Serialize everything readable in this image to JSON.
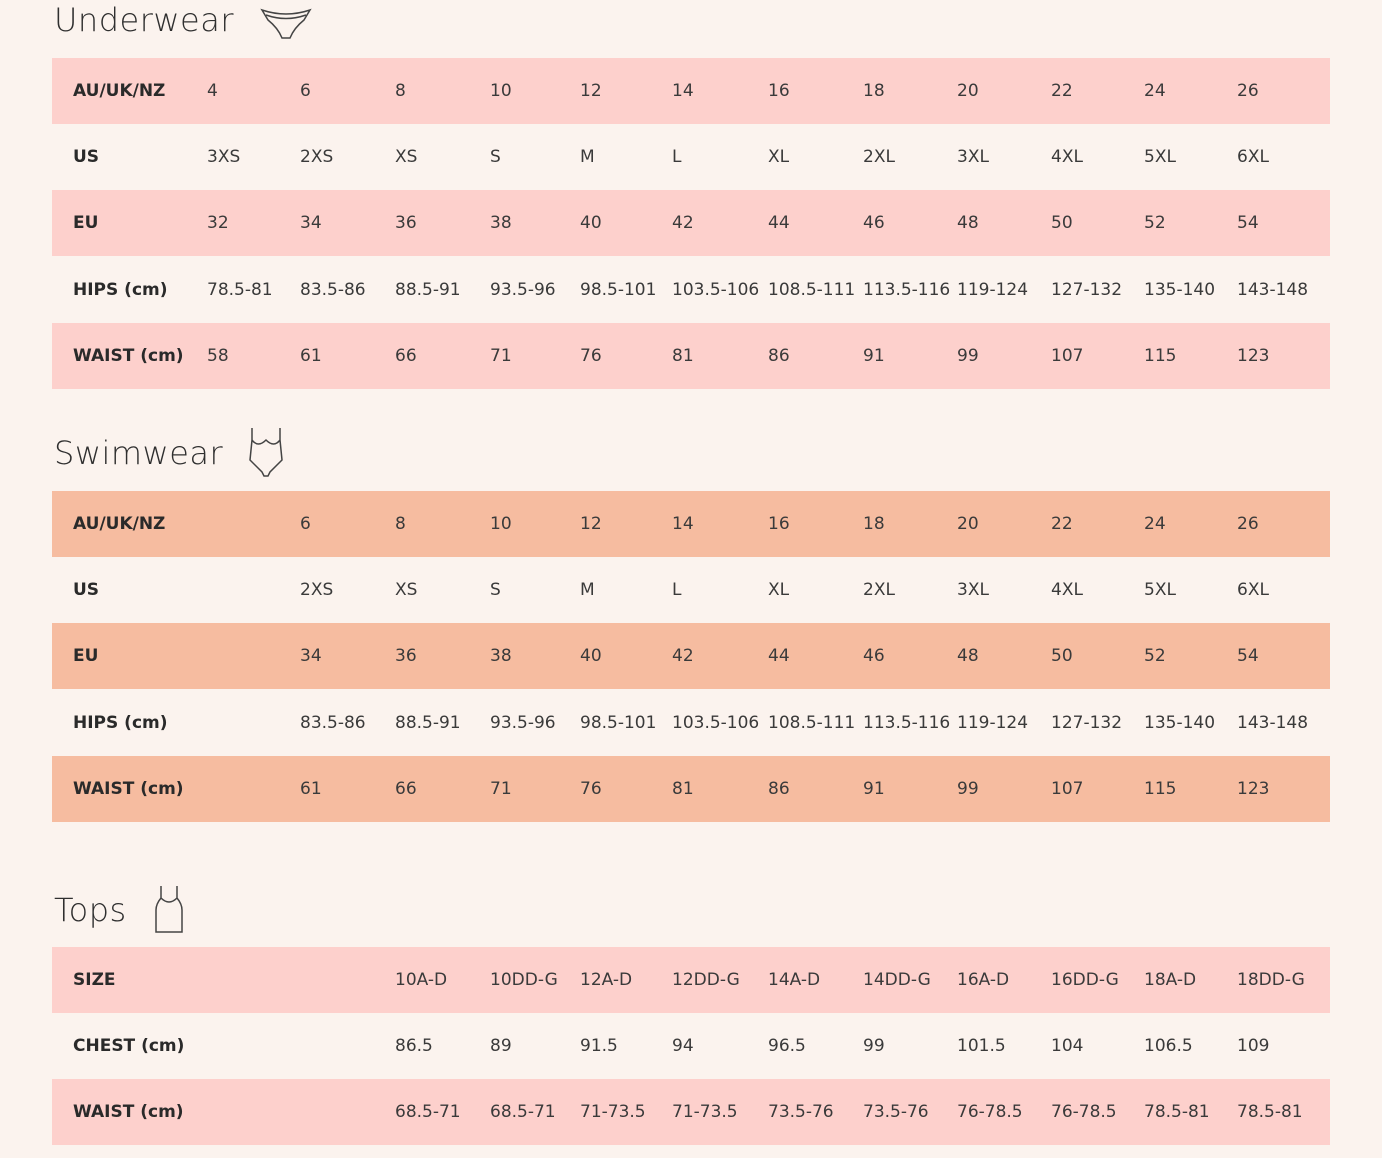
{
  "sections": [
    {
      "title": "Underwear",
      "rows": [
        {
          "label": "AU/UK/NZ",
          "values": [
            "4",
            "6",
            "8",
            "10",
            "12",
            "14",
            "16",
            "18",
            "20",
            "22",
            "24",
            "26"
          ]
        },
        {
          "label": "US",
          "values": [
            "3XS",
            "2XS",
            "XS",
            "S",
            "M",
            "L",
            "XL",
            "2XL",
            "3XL",
            "4XL",
            "5XL",
            "6XL"
          ]
        },
        {
          "label": "EU",
          "values": [
            "32",
            "34",
            "36",
            "38",
            "40",
            "42",
            "44",
            "46",
            "48",
            "50",
            "52",
            "54"
          ]
        },
        {
          "label": "HIPS (cm)",
          "values": [
            "78.5-81",
            "83.5-86",
            "88.5-91",
            "93.5-96",
            "98.5-101",
            "103.5-106",
            "108.5-111",
            "113.5-116",
            "119-124",
            "127-132",
            "135-140",
            "143-148"
          ]
        },
        {
          "label": "WAIST (cm)",
          "values": [
            "58",
            "61",
            "66",
            "71",
            "76",
            "81",
            "86",
            "91",
            "99",
            "107",
            "115",
            "123"
          ]
        }
      ]
    },
    {
      "title": "Swimwear",
      "rows": [
        {
          "label": "AU/UK/NZ",
          "values": [
            "6",
            "8",
            "10",
            "12",
            "14",
            "16",
            "18",
            "20",
            "22",
            "24",
            "26"
          ]
        },
        {
          "label": "US",
          "values": [
            "2XS",
            "XS",
            "S",
            "M",
            "L",
            "XL",
            "2XL",
            "3XL",
            "4XL",
            "5XL",
            "6XL"
          ]
        },
        {
          "label": "EU",
          "values": [
            "34",
            "36",
            "38",
            "40",
            "42",
            "44",
            "46",
            "48",
            "50",
            "52",
            "54"
          ]
        },
        {
          "label": "HIPS (cm)",
          "values": [
            "83.5-86",
            "88.5-91",
            "93.5-96",
            "98.5-101",
            "103.5-106",
            "108.5-111",
            "113.5-116",
            "119-124",
            "127-132",
            "135-140",
            "143-148"
          ]
        },
        {
          "label": "WAIST (cm)",
          "values": [
            "61",
            "66",
            "71",
            "76",
            "81",
            "86",
            "91",
            "99",
            "107",
            "115",
            "123"
          ]
        }
      ]
    },
    {
      "title": "Tops",
      "rows": [
        {
          "label": "SIZE",
          "values": [
            "10A-D",
            "10DD-G",
            "12A-D",
            "12DD-G",
            "14A-D",
            "14DD-G",
            "16A-D",
            "16DD-G",
            "18A-D",
            "18DD-G"
          ]
        },
        {
          "label": "CHEST (cm)",
          "values": [
            "86.5",
            "89",
            "91.5",
            "94",
            "96.5",
            "99",
            "101.5",
            "104",
            "106.5",
            "109"
          ]
        },
        {
          "label": "WAIST (cm)",
          "values": [
            "68.5-71",
            "68.5-71",
            "71-73.5",
            "71-73.5",
            "73.5-76",
            "73.5-76",
            "76-78.5",
            "76-78.5",
            "78.5-81",
            "78.5-81"
          ]
        }
      ]
    }
  ]
}
